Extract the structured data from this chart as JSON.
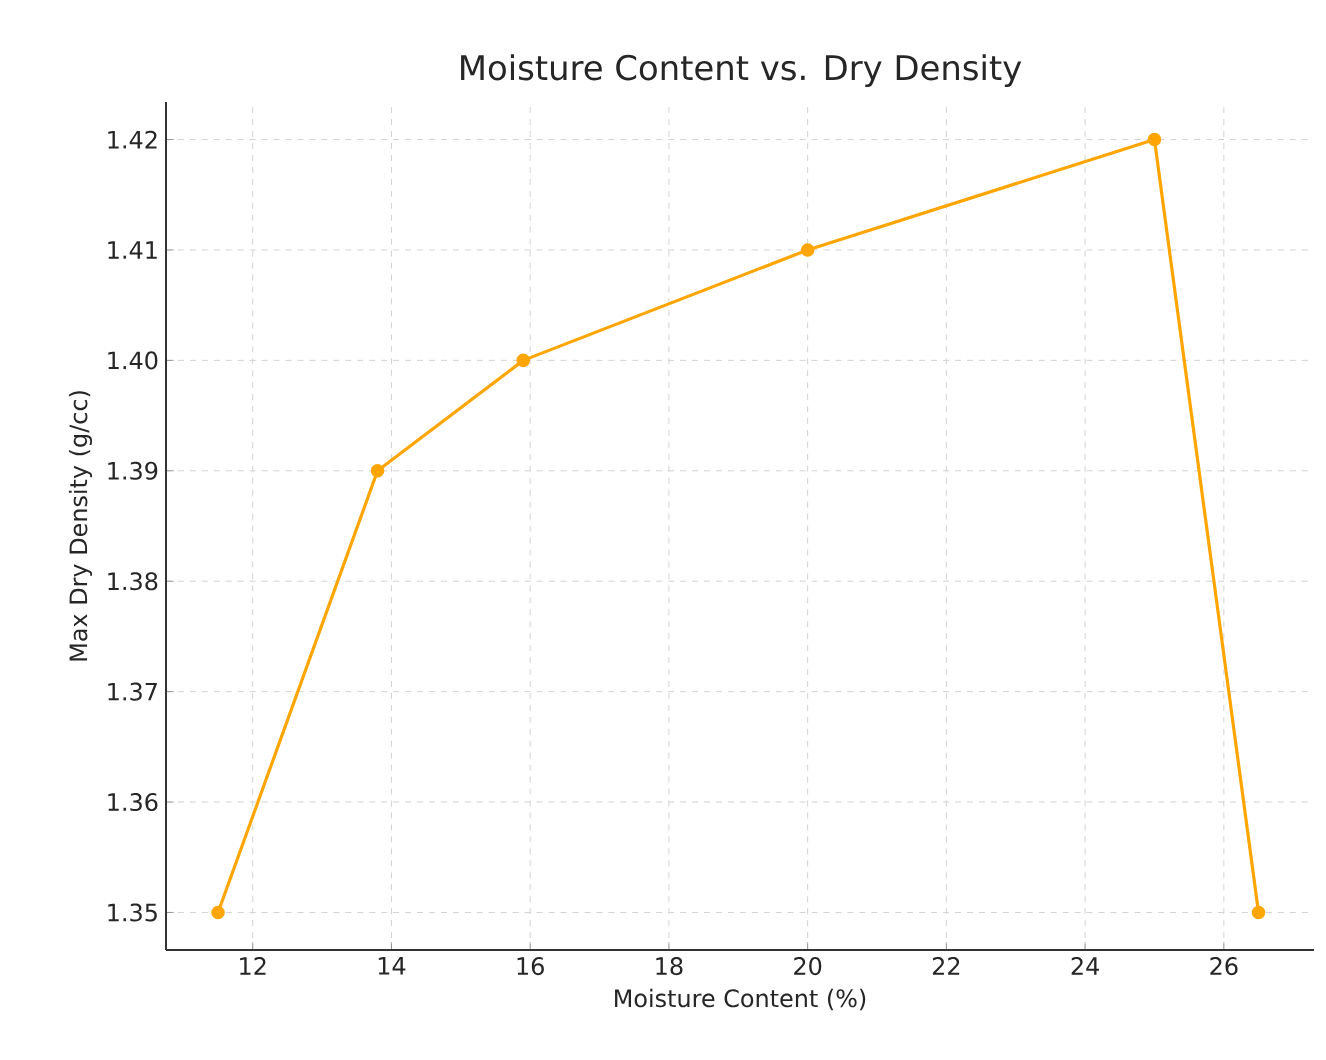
{
  "chart_data": {
    "type": "line",
    "title": "Moisture Content vs. Dry Density",
    "xlabel": "Moisture Content (%)",
    "ylabel": "Max Dry Density (g/cc)",
    "x": [
      11.5,
      13.8,
      15.9,
      20,
      25,
      26.5
    ],
    "series": [
      {
        "color": "#ffa500",
        "values": [
          1.35,
          1.39,
          1.4,
          1.41,
          1.42,
          1.35
        ]
      }
    ],
    "xlim": [
      10.75,
      27.3
    ],
    "ylim": [
      1.3466,
      1.4234
    ],
    "xticks": [
      12,
      14,
      16,
      18,
      20,
      22,
      24,
      26
    ],
    "yticks": [
      {
        "value": 1.35,
        "label": "1.35"
      },
      {
        "value": 1.36,
        "label": "1.36"
      },
      {
        "value": 1.37,
        "label": "1.37"
      },
      {
        "value": 1.38,
        "label": "1.38"
      },
      {
        "value": 1.39,
        "label": "1.39"
      },
      {
        "value": 1.4,
        "label": "1.40"
      },
      {
        "value": 1.41,
        "label": "1.41"
      },
      {
        "value": 1.42,
        "label": "1.42"
      }
    ],
    "grid": true,
    "marker": "circle",
    "line_style": "solid"
  }
}
